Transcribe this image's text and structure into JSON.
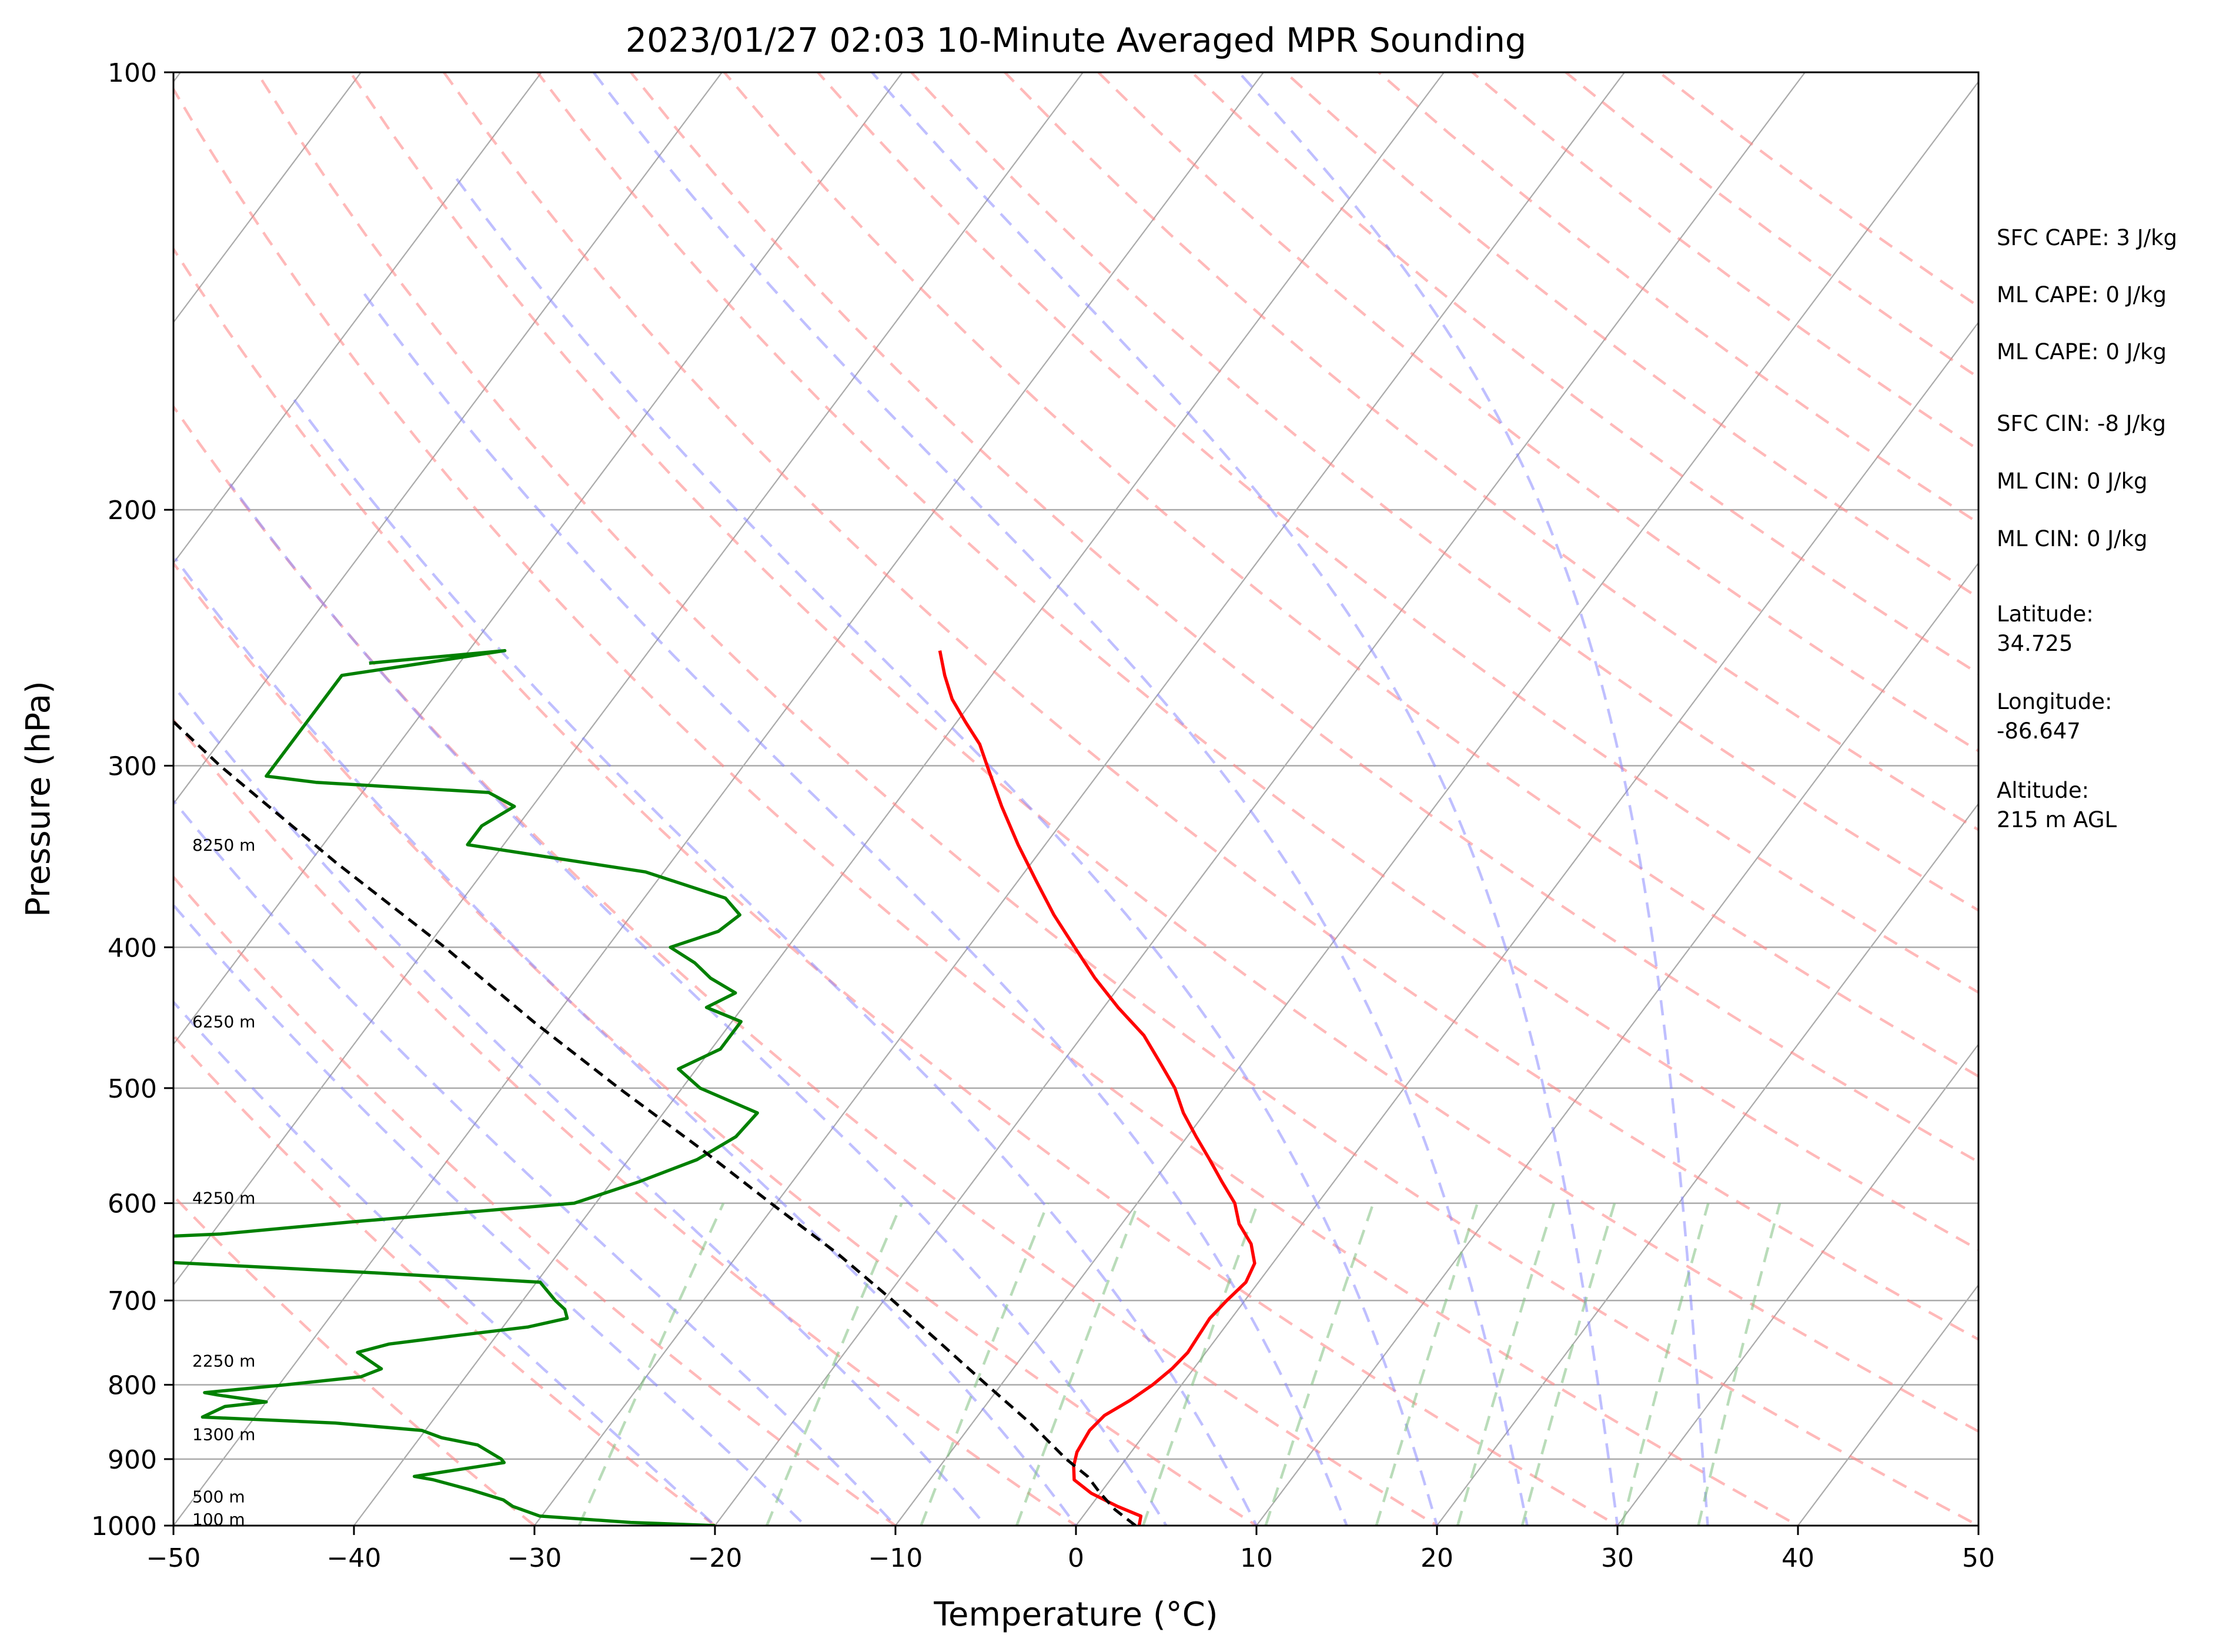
{
  "chart_data": {
    "type": "line",
    "title": "2023/01/27 02:03 10-Minute Averaged MPR Sounding",
    "xlabel": "Temperature (°C)",
    "ylabel": "Pressure (hPa)",
    "xlim": [
      -50,
      50
    ],
    "ylim": [
      1000,
      100
    ],
    "y_scale": "log",
    "x_ticks": [
      -50,
      -40,
      -30,
      -20,
      -10,
      0,
      10,
      20,
      30,
      40,
      50
    ],
    "x_tick_labels": [
      "−50",
      "−40",
      "−30",
      "−20",
      "−10",
      "0",
      "10",
      "20",
      "30",
      "40",
      "50"
    ],
    "y_ticks": [
      100,
      200,
      300,
      400,
      500,
      600,
      700,
      800,
      900,
      1000
    ],
    "y_tick_labels": [
      "100",
      "200",
      "300",
      "400",
      "500",
      "600",
      "700",
      "800",
      "900",
      "1000"
    ],
    "skew": true,
    "grid": true,
    "series": [
      {
        "role": "temperature",
        "color": "#ff0000",
        "points": [
          [
            1000,
            3.5
          ],
          [
            985,
            3.2
          ],
          [
            970,
            1.5
          ],
          [
            950,
            -0.5
          ],
          [
            930,
            -2.0
          ],
          [
            910,
            -2.6
          ],
          [
            890,
            -3.0
          ],
          [
            860,
            -3.2
          ],
          [
            840,
            -3.0
          ],
          [
            820,
            -2.2
          ],
          [
            800,
            -1.6
          ],
          [
            780,
            -1.2
          ],
          [
            760,
            -1.0
          ],
          [
            740,
            -1.1
          ],
          [
            720,
            -1.2
          ],
          [
            700,
            -1.0
          ],
          [
            680,
            -0.7
          ],
          [
            660,
            -1.0
          ],
          [
            640,
            -2.0
          ],
          [
            620,
            -3.5
          ],
          [
            600,
            -4.6
          ],
          [
            580,
            -6.2
          ],
          [
            560,
            -7.8
          ],
          [
            540,
            -9.5
          ],
          [
            520,
            -11.2
          ],
          [
            500,
            -12.7
          ],
          [
            480,
            -14.6
          ],
          [
            460,
            -16.6
          ],
          [
            440,
            -19.2
          ],
          [
            420,
            -21.7
          ],
          [
            400,
            -24.1
          ],
          [
            380,
            -26.6
          ],
          [
            360,
            -29.0
          ],
          [
            340,
            -31.5
          ],
          [
            320,
            -34.0
          ],
          [
            300,
            -36.5
          ],
          [
            290,
            -37.8
          ],
          [
            280,
            -39.5
          ],
          [
            270,
            -41.2
          ],
          [
            260,
            -42.6
          ],
          [
            250,
            -43.9
          ]
        ]
      },
      {
        "role": "dewpoint",
        "color": "#008000",
        "points": [
          [
            1000,
            -20.0
          ],
          [
            995,
            -24.8
          ],
          [
            985,
            -30.1
          ],
          [
            970,
            -32.0
          ],
          [
            960,
            -32.8
          ],
          [
            945,
            -35.0
          ],
          [
            930,
            -37.5
          ],
          [
            925,
            -38.7
          ],
          [
            905,
            -34.3
          ],
          [
            900,
            -34.6
          ],
          [
            880,
            -36.5
          ],
          [
            870,
            -38.8
          ],
          [
            860,
            -40.2
          ],
          [
            850,
            -45.3
          ],
          [
            842,
            -52.9
          ],
          [
            828,
            -52.1
          ],
          [
            822,
            -50.0
          ],
          [
            813,
            -53.0
          ],
          [
            810,
            -53.8
          ],
          [
            805,
            -51.7
          ],
          [
            800,
            -49.6
          ],
          [
            790,
            -45.8
          ],
          [
            780,
            -45.0
          ],
          [
            770,
            -46.0
          ],
          [
            760,
            -47.0
          ],
          [
            750,
            -45.6
          ],
          [
            740,
            -42.2
          ],
          [
            730,
            -38.6
          ],
          [
            720,
            -36.8
          ],
          [
            710,
            -37.3
          ],
          [
            700,
            -38.2
          ],
          [
            680,
            -39.8
          ],
          [
            670,
            -49.3
          ],
          [
            650,
            -71.0
          ],
          [
            640,
            -71.8
          ],
          [
            630,
            -59.5
          ],
          [
            618,
            -52.7
          ],
          [
            600,
            -41.2
          ],
          [
            580,
            -38.5
          ],
          [
            560,
            -36.2
          ],
          [
            540,
            -35.0
          ],
          [
            520,
            -34.8
          ],
          [
            500,
            -39.0
          ],
          [
            485,
            -41.0
          ],
          [
            470,
            -39.5
          ],
          [
            450,
            -39.5
          ],
          [
            440,
            -42.0
          ],
          [
            430,
            -41.0
          ],
          [
            420,
            -43.0
          ],
          [
            410,
            -44.5
          ],
          [
            400,
            -46.5
          ],
          [
            390,
            -44.5
          ],
          [
            380,
            -44.0
          ],
          [
            370,
            -45.5
          ],
          [
            355,
            -51.0
          ],
          [
            340,
            -62.0
          ],
          [
            330,
            -62.0
          ],
          [
            320,
            -61.0
          ],
          [
            313,
            -63.0
          ],
          [
            308,
            -73.0
          ],
          [
            305,
            -76.0
          ],
          [
            260,
            -76.0
          ],
          [
            255,
            -72.0
          ],
          [
            250,
            -68.0
          ],
          [
            255,
            -75.0
          ]
        ]
      },
      {
        "role": "parcel",
        "color": "#000000",
        "dashed": true,
        "points": [
          [
            1000,
            3.3
          ],
          [
            975,
            1.5
          ],
          [
            950,
            0.0
          ],
          [
            925,
            -1.4
          ],
          [
            900,
            -3.3
          ],
          [
            850,
            -6.8
          ],
          [
            800,
            -10.8
          ],
          [
            750,
            -15.0
          ],
          [
            700,
            -19.5
          ],
          [
            650,
            -24.5
          ],
          [
            600,
            -30.3
          ],
          [
            550,
            -36.5
          ],
          [
            500,
            -43.5
          ],
          [
            450,
            -51.0
          ],
          [
            400,
            -59.0
          ],
          [
            350,
            -68.5
          ],
          [
            300,
            -79.0
          ],
          [
            275,
            -84.5
          ]
        ]
      }
    ],
    "height_labels": [
      "100 m",
      "500 m",
      "1300 m",
      "2250 m",
      "4250 m",
      "6250 m",
      "8250 m"
    ],
    "height_label_pressures": [
      990,
      955,
      865,
      770,
      595,
      450,
      340
    ],
    "annotations": [
      "SFC CAPE: 3 J/kg",
      "ML CAPE: 0 J/kg",
      "ML CAPE: 0 J/kg",
      "SFC CIN: -8 J/kg",
      "ML CIN: 0 J/kg",
      "ML CIN: 0 J/kg",
      "Latitude:",
      "34.725",
      "Longitude:",
      "-86.647",
      "Altitude:",
      "215 m AGL"
    ],
    "dry_adiabats_theta_c": [
      -30,
      -20,
      -10,
      0,
      10,
      20,
      30,
      40,
      50,
      60,
      70,
      80,
      90,
      100,
      110,
      120,
      130,
      140,
      150,
      160,
      170,
      180,
      190,
      200
    ],
    "moist_adiabats_start_c": [
      -20,
      -15,
      -10,
      -5,
      0,
      5,
      10,
      15,
      20,
      25,
      30,
      35
    ],
    "mixing_ratio_lines_gkg": [
      0.4,
      1,
      2,
      3,
      5,
      8,
      12,
      16,
      20,
      28,
      36
    ],
    "colors": {
      "isotherm": "#aaaaaa",
      "isobar": "#aaaaaa",
      "dry_adiabat": "#ff8080",
      "moist_adiabat": "#8080ff",
      "mixing_ratio": "#80c080"
    }
  }
}
